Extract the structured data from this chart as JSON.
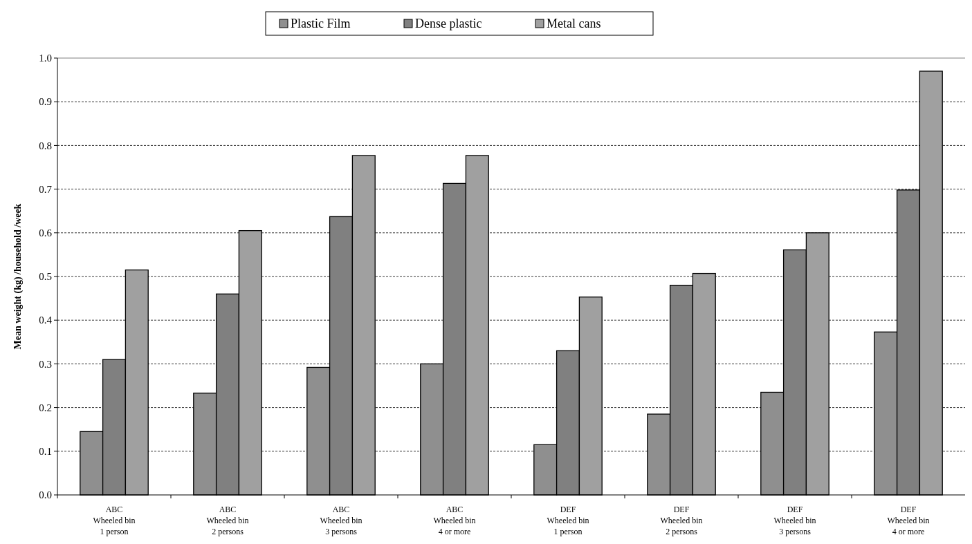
{
  "chart_data": {
    "type": "bar",
    "ylabel": "Mean weight (kg) /household /week",
    "categories": [
      "ABC\nWheeled bin\n1 person",
      "ABC\nWheeled bin\n2 persons",
      "ABC\nWheeled bin\n3 persons",
      "ABC\nWheeled bin\n4 or more",
      "DEF\nWheeled bin\n1 person",
      "DEF\nWheeled bin\n2 persons",
      "DEF\nWheeled bin\n3 persons",
      "DEF\nWheeled bin\n4 or more"
    ],
    "series": [
      {
        "name": "Plastic Film",
        "color": "#8f8f8f",
        "values": [
          0.145,
          0.233,
          0.292,
          0.3,
          0.115,
          0.185,
          0.235,
          0.373
        ]
      },
      {
        "name": "Dense plastic",
        "color": "#808080",
        "values": [
          0.31,
          0.46,
          0.637,
          0.713,
          0.33,
          0.48,
          0.561,
          0.698
        ]
      },
      {
        "name": "Metal cans",
        "color": "#a0a0a0",
        "values": [
          0.515,
          0.605,
          0.777,
          0.777,
          0.453,
          0.507,
          0.6,
          0.97
        ]
      }
    ],
    "ylim": [
      0,
      1
    ],
    "yticks": [
      {
        "value": 0,
        "label": "0.0"
      },
      {
        "value": 0.1,
        "label": "0.1"
      },
      {
        "value": 0.2,
        "label": "0.2"
      },
      {
        "value": 0.3,
        "label": "0.3"
      },
      {
        "value": 0.4,
        "label": "0.4"
      },
      {
        "value": 0.5,
        "label": "0.5"
      },
      {
        "value": 0.6,
        "label": "0.6"
      },
      {
        "value": 0.7,
        "label": "0.7"
      },
      {
        "value": 0.8,
        "label": "0.8"
      },
      {
        "value": 0.9,
        "label": "0.9"
      },
      {
        "value": 1,
        "label": "1.0"
      }
    ],
    "grid": "y",
    "legend": "top"
  }
}
